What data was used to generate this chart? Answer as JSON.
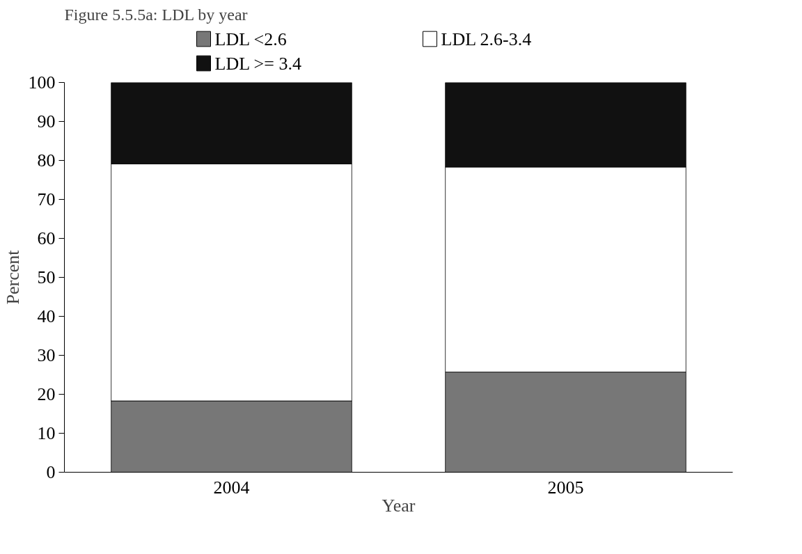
{
  "chart_data": {
    "type": "bar",
    "stacked": true,
    "title": "Figure 5.5.5a: LDL by year",
    "xlabel": "Year",
    "ylabel": "Percent",
    "categories": [
      "2004",
      "2005"
    ],
    "series": [
      {
        "name": "LDL <2.6",
        "color": "#777777",
        "values": [
          18.3,
          25.7
        ]
      },
      {
        "name": "LDL 2.6-3.4",
        "color": "#ffffff",
        "values": [
          60.8,
          52.6
        ]
      },
      {
        "name": "LDL >= 3.4",
        "color": "#111111",
        "values": [
          20.9,
          21.7
        ]
      }
    ],
    "ylim": [
      0,
      100
    ],
    "yticks": [
      0,
      10,
      20,
      30,
      40,
      50,
      60,
      70,
      80,
      90,
      100
    ],
    "grid": false,
    "legend": "top"
  }
}
